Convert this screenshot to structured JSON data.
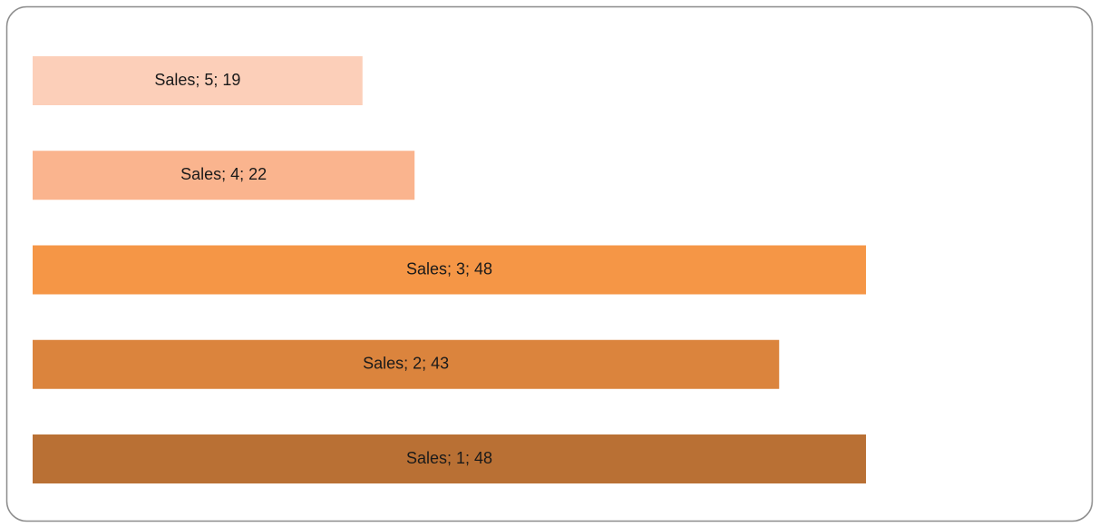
{
  "chart_data": {
    "type": "bar",
    "orientation": "horizontal",
    "categories": [
      "1",
      "2",
      "3",
      "4",
      "5"
    ],
    "series": [
      {
        "name": "Sales",
        "values": [
          48,
          43,
          48,
          22,
          19
        ],
        "value_labels": [
          "Sales; 1; 48",
          "Sales; 2; 43",
          "Sales; 3; 48",
          "Sales; 4; 22",
          "Sales; 5; 19"
        ],
        "colors": [
          "#b97034",
          "#db843d",
          "#f59646",
          "#fab48e",
          "#fccfb9"
        ]
      }
    ]
  }
}
